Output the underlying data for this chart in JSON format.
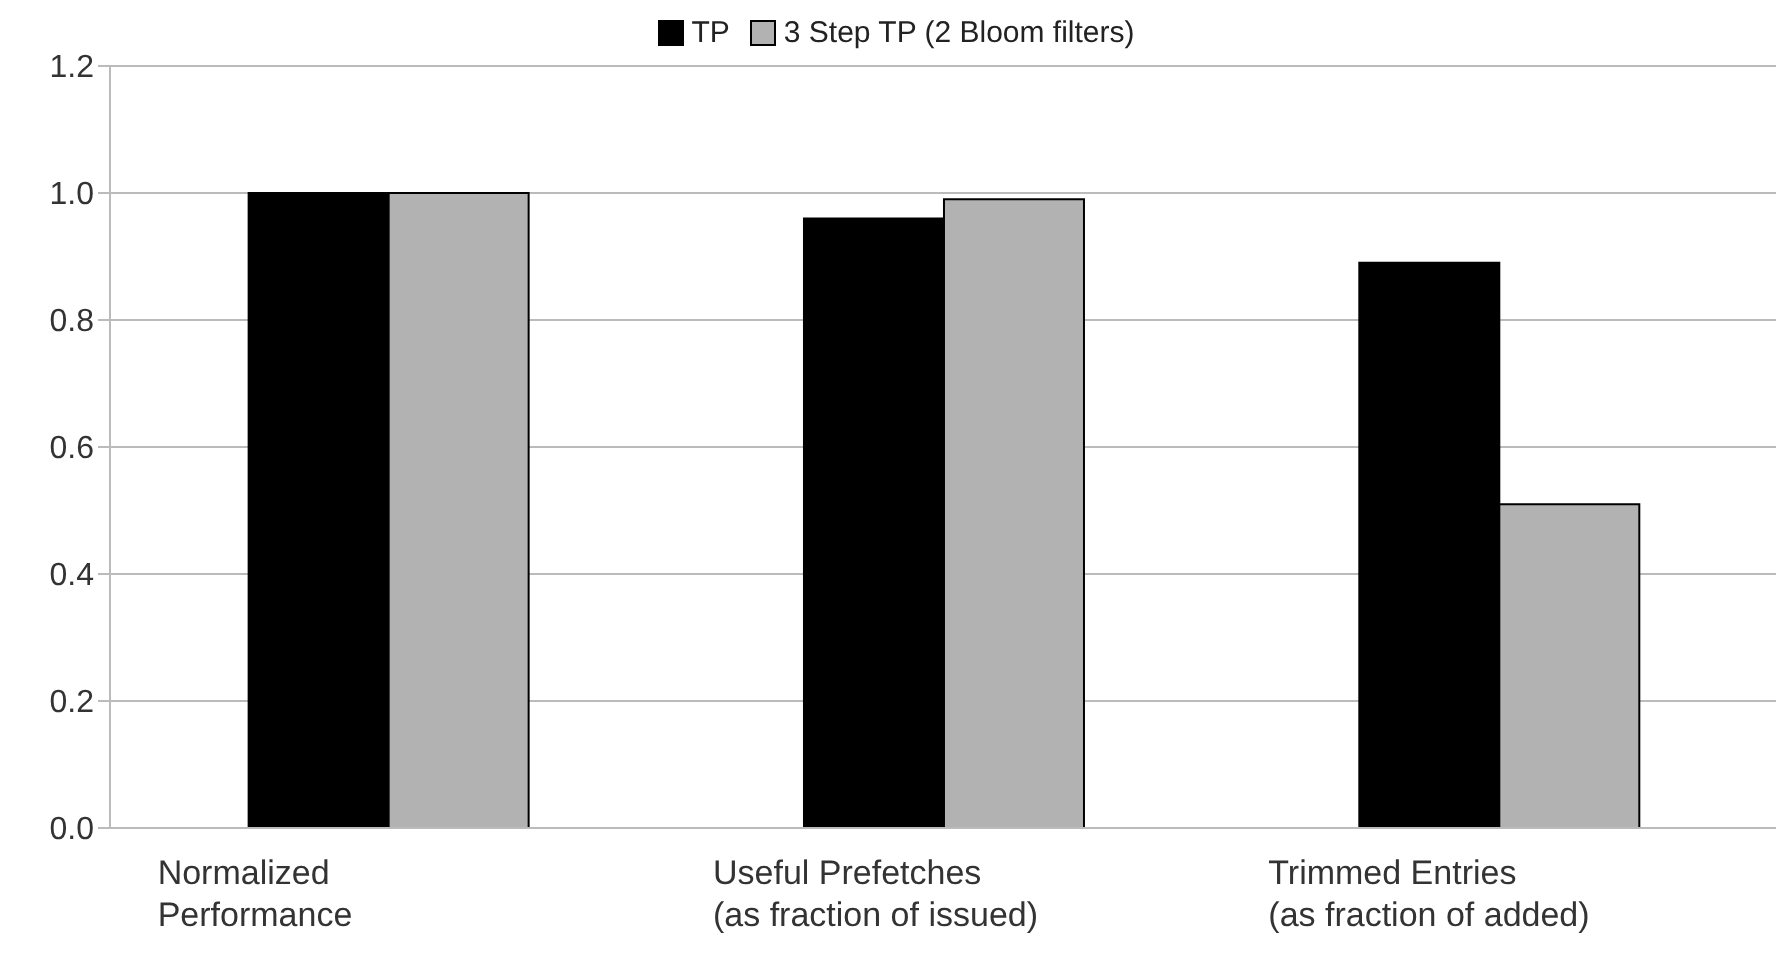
{
  "chart_data": {
    "type": "bar",
    "categories": [
      "Normalized\nPerformance",
      "Useful Prefetches\n(as fraction of issued)",
      "Trimmed Entries\n(as fraction of added)"
    ],
    "series": [
      {
        "name": "TP",
        "color": "#000000",
        "values": [
          1.0,
          0.96,
          0.89
        ]
      },
      {
        "name": "3 Step TP (2 Bloom filters)",
        "color": "#b2b2b2",
        "values": [
          1.0,
          0.99,
          0.51
        ]
      }
    ],
    "ylim": [
      0,
      1.2
    ],
    "yticks": [
      {
        "value": 0,
        "label": "0.0"
      },
      {
        "value": 0.2,
        "label": "0.2"
      },
      {
        "value": 0.4,
        "label": "0.4"
      },
      {
        "value": 0.6,
        "label": "0.6"
      },
      {
        "value": 0.8,
        "label": "0.8"
      },
      {
        "value": 1,
        "label": "1.0"
      },
      {
        "value": 1.2,
        "label": "1.2"
      }
    ],
    "grid": "y",
    "legend": "top"
  }
}
